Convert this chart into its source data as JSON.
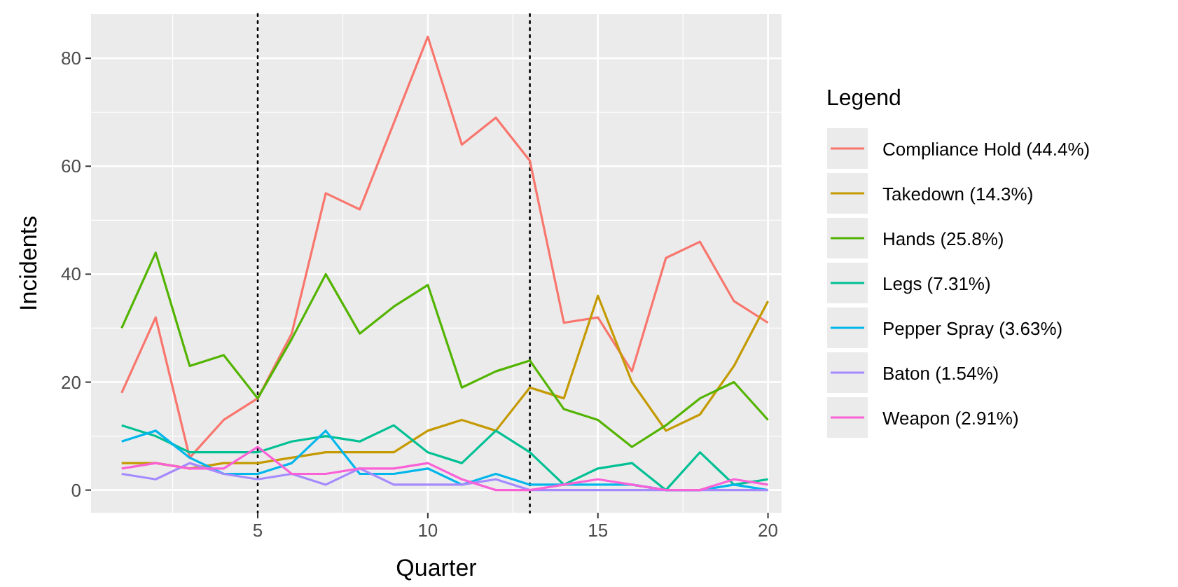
{
  "chart_data": {
    "type": "line",
    "xlabel": "Quarter",
    "ylabel": "Incidents",
    "legend_title": "Legend",
    "legend": "right",
    "grid": true,
    "line_style": "solid",
    "marker": "none",
    "x": [
      1,
      2,
      3,
      4,
      5,
      6,
      7,
      8,
      9,
      10,
      11,
      12,
      13,
      14,
      15,
      16,
      17,
      18,
      19,
      20
    ],
    "xlim": [
      0.1,
      20.4
    ],
    "xticks": [
      5,
      10,
      15,
      20
    ],
    "ylim": [
      -4.2,
      88.2
    ],
    "yticks": [
      0,
      20,
      40,
      60,
      80
    ],
    "series": [
      {
        "name": "Compliance Hold (44.4%)",
        "color": "#f8766d",
        "values": [
          18,
          32,
          6,
          13,
          17,
          29,
          55,
          52,
          68,
          84,
          64,
          69,
          61,
          31,
          32,
          22,
          43,
          46,
          35,
          31
        ]
      },
      {
        "name": "Takedown (14.3%)",
        "color": "#c49a00",
        "values": [
          5,
          5,
          4,
          5,
          5,
          6,
          7,
          7,
          7,
          11,
          13,
          11,
          19,
          17,
          36,
          20,
          11,
          14,
          23,
          35
        ]
      },
      {
        "name": "Hands (25.8%)",
        "color": "#53b400",
        "values": [
          30,
          44,
          23,
          25,
          17,
          28,
          40,
          29,
          34,
          38,
          19,
          22,
          24,
          15,
          13,
          8,
          12,
          17,
          20,
          13
        ]
      },
      {
        "name": "Legs (7.31%)",
        "color": "#00c094",
        "values": [
          12,
          10,
          7,
          7,
          7,
          9,
          10,
          9,
          12,
          7,
          5,
          11,
          7,
          1,
          4,
          5,
          0,
          7,
          1,
          2
        ]
      },
      {
        "name": "Pepper Spray (3.63%)",
        "color": "#00b6eb",
        "values": [
          9,
          11,
          6,
          3,
          3,
          5,
          11,
          3,
          3,
          4,
          1,
          3,
          1,
          1,
          1,
          1,
          0,
          0,
          1,
          0
        ]
      },
      {
        "name": "Baton (1.54%)",
        "color": "#a58aff",
        "values": [
          3,
          2,
          5,
          3,
          2,
          3,
          1,
          4,
          1,
          1,
          1,
          2,
          0,
          0,
          0,
          0,
          0,
          0,
          0,
          0
        ]
      },
      {
        "name": "Weapon (2.91%)",
        "color": "#fb61d7",
        "values": [
          4,
          5,
          4,
          4,
          8,
          3,
          3,
          4,
          4,
          5,
          2,
          0,
          0,
          1,
          2,
          1,
          0,
          0,
          2,
          1
        ]
      }
    ],
    "ref_lines": [
      {
        "axis": "x",
        "value": 5,
        "color": "#000000",
        "line_style": "dotted"
      },
      {
        "axis": "x",
        "value": 13,
        "color": "#000000",
        "line_style": "dotted"
      }
    ]
  }
}
